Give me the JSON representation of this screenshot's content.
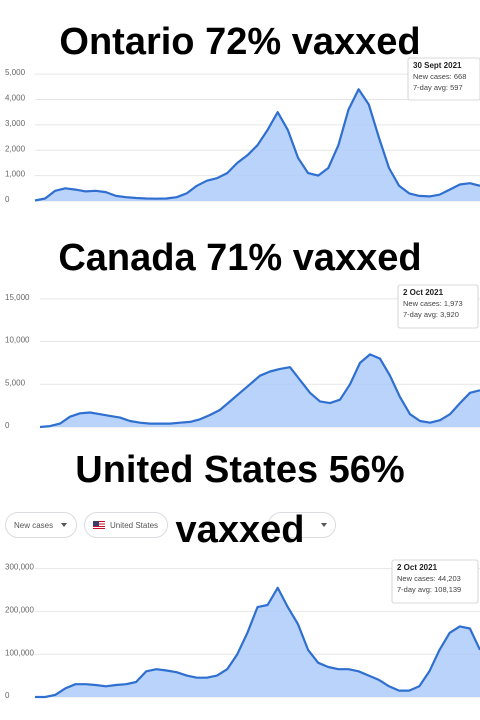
{
  "chart_data": [
    {
      "type": "area",
      "title": "Ontario 72% vaxxed",
      "color": "#2f6fd0",
      "fill": "#aecbfa",
      "ylim": [
        0,
        5200
      ],
      "yticks": [
        0,
        {
          "value": 1000,
          "label": "1,000"
        },
        {
          "value": 2000,
          "label": "2,000"
        },
        {
          "value": 3000,
          "label": "3,000"
        },
        {
          "value": 4000,
          "label": "4,000"
        },
        {
          "value": 5000,
          "label": "5,000"
        }
      ],
      "values": [
        20,
        100,
        400,
        500,
        450,
        380,
        400,
        350,
        200,
        150,
        120,
        100,
        90,
        100,
        150,
        300,
        600,
        800,
        900,
        1100,
        1500,
        1800,
        2200,
        2800,
        3500,
        2800,
        1700,
        1100,
        1000,
        1300,
        2200,
        3600,
        4400,
        3800,
        2500,
        1300,
        600,
        300,
        200,
        180,
        250,
        450,
        650,
        700,
        600
      ],
      "tooltip": {
        "date": "30 Sept 2021",
        "lines": [
          "New cases: 668",
          "7-day avg: 597"
        ]
      }
    },
    {
      "type": "area",
      "title": "Canada 71% vaxxed",
      "color": "#2f6fd0",
      "fill": "#aecbfa",
      "ylim": [
        0,
        16500
      ],
      "yticks": [
        0,
        {
          "value": 5000,
          "label": "5,000"
        },
        {
          "value": 10000,
          "label": "10,000"
        },
        {
          "value": 15000,
          "label": "15,000"
        }
      ],
      "values": [
        0,
        100,
        400,
        1200,
        1600,
        1700,
        1500,
        1300,
        1100,
        700,
        500,
        400,
        400,
        400,
        500,
        600,
        900,
        1400,
        2000,
        3000,
        4000,
        5000,
        6000,
        6500,
        6800,
        7000,
        5500,
        4000,
        3000,
        2800,
        3200,
        5000,
        7500,
        8500,
        8000,
        6000,
        3500,
        1500,
        700,
        500,
        800,
        1500,
        2800,
        4000,
        4300
      ],
      "tooltip": {
        "date": "2 Oct 2021",
        "lines": [
          "New cases: 1,973",
          "7-day avg: 3,920"
        ]
      }
    },
    {
      "type": "area",
      "title": "United States 56% vaxxed",
      "color": "#2f6fd0",
      "fill": "#aecbfa",
      "ylim": [
        0,
        320000
      ],
      "yticks": [
        0,
        {
          "value": 100000,
          "label": "100,000"
        },
        {
          "value": 200000,
          "label": "200,000"
        },
        {
          "value": 300000,
          "label": "300,000"
        }
      ],
      "values": [
        0,
        0,
        5000,
        20000,
        30000,
        30000,
        28000,
        25000,
        28000,
        30000,
        35000,
        60000,
        65000,
        62000,
        58000,
        50000,
        45000,
        45000,
        50000,
        65000,
        100000,
        150000,
        210000,
        215000,
        255000,
        210000,
        170000,
        110000,
        80000,
        70000,
        65000,
        65000,
        60000,
        50000,
        40000,
        25000,
        15000,
        15000,
        25000,
        60000,
        110000,
        150000,
        165000,
        160000,
        110000
      ],
      "tooltip": {
        "date": "2 Oct 2021",
        "lines": [
          "New cases: 44,203",
          "7-day avg: 108,139"
        ]
      },
      "controls": [
        "New cases",
        "United States"
      ]
    }
  ]
}
